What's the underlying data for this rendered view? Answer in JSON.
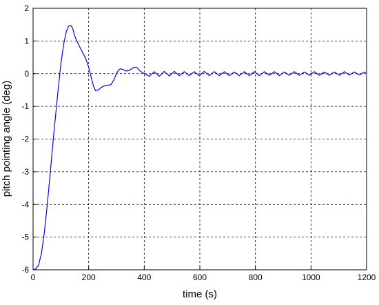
{
  "chart_data": {
    "type": "line",
    "xlabel": "time (s)",
    "ylabel": "pitch pointing angle (deg)",
    "xlim": [
      0,
      1200
    ],
    "ylim": [
      -6,
      2
    ],
    "xticks": [
      0,
      200,
      400,
      600,
      800,
      1000,
      1200
    ],
    "yticks": [
      -6,
      -5,
      -4,
      -3,
      -2,
      -1,
      0,
      1,
      2
    ],
    "grid": true,
    "series": [
      {
        "color": "#0000ff",
        "x": [
          0,
          10,
          20,
          30,
          40,
          50,
          60,
          75,
          90,
          100,
          110,
          120,
          128,
          135,
          142,
          150,
          160,
          175,
          190,
          200,
          210,
          218,
          225,
          235,
          245,
          260,
          280,
          290,
          300,
          308,
          315,
          325,
          335,
          345,
          355,
          365,
          375,
          385,
          400,
          418,
          436,
          454,
          472,
          490,
          508,
          526,
          544,
          562,
          580,
          598,
          616,
          634,
          652,
          670,
          688,
          706,
          724,
          742,
          760,
          778,
          796,
          814,
          832,
          850,
          868,
          886,
          904,
          922,
          940,
          958,
          976,
          994,
          1012,
          1030,
          1048,
          1066,
          1084,
          1102,
          1120,
          1138,
          1156,
          1174,
          1192,
          1200
        ],
        "values": [
          -6,
          -5.97,
          -5.85,
          -5.5,
          -4.9,
          -4.1,
          -3.2,
          -1.8,
          -0.5,
          0.3,
          0.9,
          1.3,
          1.45,
          1.48,
          1.4,
          1.15,
          0.95,
          0.7,
          0.45,
          0.2,
          -0.15,
          -0.4,
          -0.52,
          -0.5,
          -0.42,
          -0.36,
          -0.34,
          -0.2,
          0.0,
          0.12,
          0.15,
          0.12,
          0.08,
          0.1,
          0.15,
          0.2,
          0.18,
          0.08,
          0.0,
          -0.08,
          0.06,
          -0.08,
          0.07,
          -0.07,
          0.07,
          -0.06,
          0.06,
          -0.06,
          0.06,
          -0.06,
          0.07,
          -0.06,
          0.06,
          -0.06,
          0.06,
          -0.06,
          0.05,
          -0.06,
          0.06,
          -0.06,
          0.06,
          -0.06,
          0.06,
          -0.05,
          0.06,
          -0.06,
          0.05,
          -0.05,
          0.06,
          -0.05,
          0.05,
          -0.05,
          0.06,
          -0.05,
          0.05,
          -0.05,
          0.05,
          -0.05,
          0.06,
          -0.04,
          0.05,
          -0.04,
          0.05,
          0.03
        ]
      }
    ]
  }
}
